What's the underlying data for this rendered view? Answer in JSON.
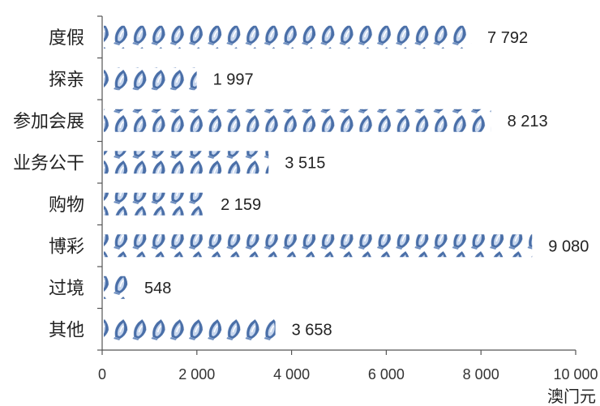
{
  "chart_data": {
    "type": "bar",
    "orientation": "horizontal",
    "categories": [
      "度假",
      "探亲",
      "参加会展",
      "业务公干",
      "购物",
      "博彩",
      "过境",
      "其他"
    ],
    "values": [
      7792,
      1997,
      8213,
      3515,
      2159,
      9080,
      548,
      3658
    ],
    "value_labels": [
      "7 792",
      "1 997",
      "8 213",
      "3 515",
      "2 159",
      "9 080",
      "548",
      "3 658"
    ],
    "xlim": [
      0,
      10000
    ],
    "xticks": [
      0,
      2000,
      4000,
      6000,
      8000,
      10000
    ],
    "xtick_labels": [
      "0",
      "2 000",
      "4 000",
      "6 000",
      "8 000",
      "10 000"
    ],
    "xlabel": "澳门元",
    "grid": false,
    "bar_fill": "pictograph",
    "colors": {
      "icon_dark": "#4a6fa8",
      "icon_light": "#c9d8ef",
      "axis": "#555555"
    }
  }
}
